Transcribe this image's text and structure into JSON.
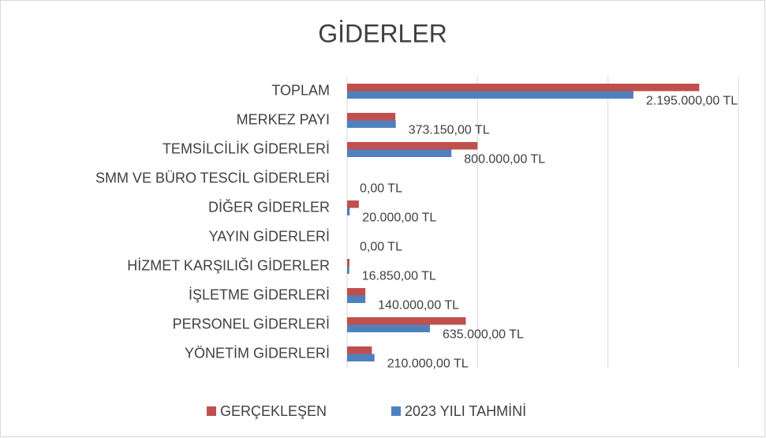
{
  "chart_data": {
    "type": "bar",
    "orientation": "horizontal",
    "title": "GİDERLER",
    "categories": [
      "TOPLAM",
      "MERKEZ PAYI",
      "TEMSİLCİLİK GİDERLERİ",
      "SMM VE BÜRO TESCİL GİDERLERİ",
      "DİĞER GİDERLER",
      "YAYIN GİDERLERİ",
      "HİZMET KARŞILIĞI GİDERLER",
      "İŞLETME GİDERLERİ",
      "PERSONEL GİDERLERİ",
      "YÖNETİM GİDERLERİ"
    ],
    "series": [
      {
        "name": "GERÇEKLEŞEN",
        "color": "#c0504d",
        "values": [
          2700000,
          370000,
          1000000,
          0,
          90000,
          0,
          18000,
          140000,
          910000,
          190000
        ]
      },
      {
        "name": "2023 YILI TAHMİNİ",
        "color": "#4f81bd",
        "values": [
          2195000,
          373150,
          800000,
          0,
          20000,
          0,
          16850,
          140000,
          635000,
          210000
        ],
        "value_labels": [
          "2.195.000,00 TL",
          "373.150,00 TL",
          "800.000,00 TL",
          "0,00 TL",
          "20.000,00 TL",
          "0,00 TL",
          "16.850,00 TL",
          "140.000,00 TL",
          "635.000,00 TL",
          "210.000,00 TL"
        ]
      }
    ],
    "xlim": [
      0,
      3000000
    ],
    "xticks": [
      0,
      1000000,
      2000000,
      3000000
    ],
    "grid": true,
    "legend": "bottom"
  }
}
